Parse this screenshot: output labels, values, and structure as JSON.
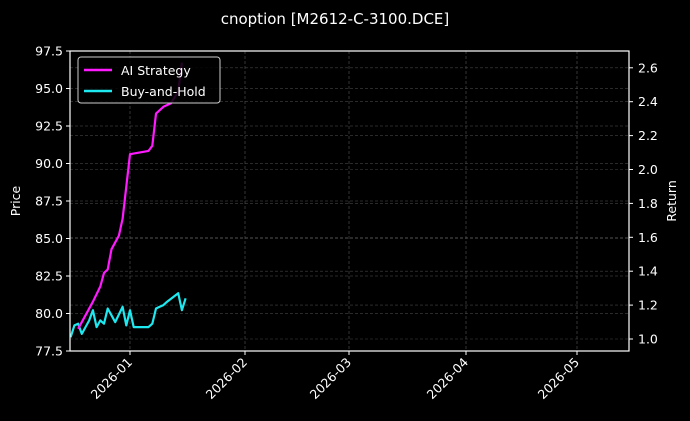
{
  "chart_data": {
    "type": "line",
    "title": "cnoption [M2612-C-3100.DCE]",
    "xlabel": "",
    "ylabel_left": "Price",
    "ylabel_right": "Return",
    "ylim_left": [
      77.5,
      97.5
    ],
    "ylim_right": [
      0.93,
      2.7
    ],
    "x_ticks": [
      "2026-01",
      "2026-02",
      "2026-03",
      "2026-04",
      "2026-05"
    ],
    "y_ticks_left": [
      "77.5",
      "80.0",
      "82.5",
      "85.0",
      "87.5",
      "90.0",
      "92.5",
      "95.0",
      "97.5"
    ],
    "y_ticks_right": [
      "1.0",
      "1.2",
      "1.4",
      "1.6",
      "1.8",
      "2.0",
      "2.2",
      "2.4",
      "2.6"
    ],
    "grid": true,
    "legend_position": "upper left",
    "background": "#000000",
    "series": [
      {
        "name": "AI Strategy",
        "axis": "right",
        "color": "#ff1aff",
        "x": [
          "2025-12-18",
          "2025-12-20",
          "2025-12-22",
          "2025-12-24",
          "2025-12-25",
          "2025-12-26",
          "2025-12-27",
          "2025-12-29",
          "2025-12-30",
          "2026-01-01",
          "2026-01-06",
          "2026-01-07",
          "2026-01-08",
          "2026-01-09",
          "2026-01-10",
          "2026-01-12",
          "2026-01-14",
          "2026-01-15"
        ],
        "values": [
          1.06,
          1.14,
          1.22,
          1.31,
          1.39,
          1.41,
          1.53,
          1.61,
          1.71,
          2.09,
          2.11,
          2.14,
          2.33,
          2.35,
          2.37,
          2.39,
          2.46,
          2.63
        ]
      },
      {
        "name": "Buy-and-Hold",
        "axis": "right",
        "color": "#1ee8f0",
        "x": [
          "2025-12-16",
          "2025-12-17",
          "2025-12-18",
          "2025-12-19",
          "2025-12-21",
          "2025-12-22",
          "2025-12-23",
          "2025-12-24",
          "2025-12-25",
          "2025-12-26",
          "2025-12-27",
          "2025-12-28",
          "2025-12-30",
          "2025-12-31",
          "2026-01-01",
          "2026-01-02",
          "2026-01-04",
          "2026-01-06",
          "2026-01-07",
          "2026-01-08",
          "2026-01-09",
          "2026-01-10",
          "2026-01-11",
          "2026-01-14",
          "2026-01-15",
          "2026-01-16"
        ],
        "values": [
          1.01,
          1.08,
          1.09,
          1.03,
          1.11,
          1.17,
          1.07,
          1.11,
          1.09,
          1.18,
          1.14,
          1.1,
          1.19,
          1.08,
          1.17,
          1.07,
          1.07,
          1.07,
          1.09,
          1.18,
          1.19,
          1.2,
          1.22,
          1.27,
          1.17,
          1.24
        ]
      }
    ]
  },
  "legend": {
    "items": [
      {
        "label": "AI Strategy",
        "color": "#ff1aff"
      },
      {
        "label": "Buy-and-Hold",
        "color": "#1ee8f0"
      }
    ]
  }
}
